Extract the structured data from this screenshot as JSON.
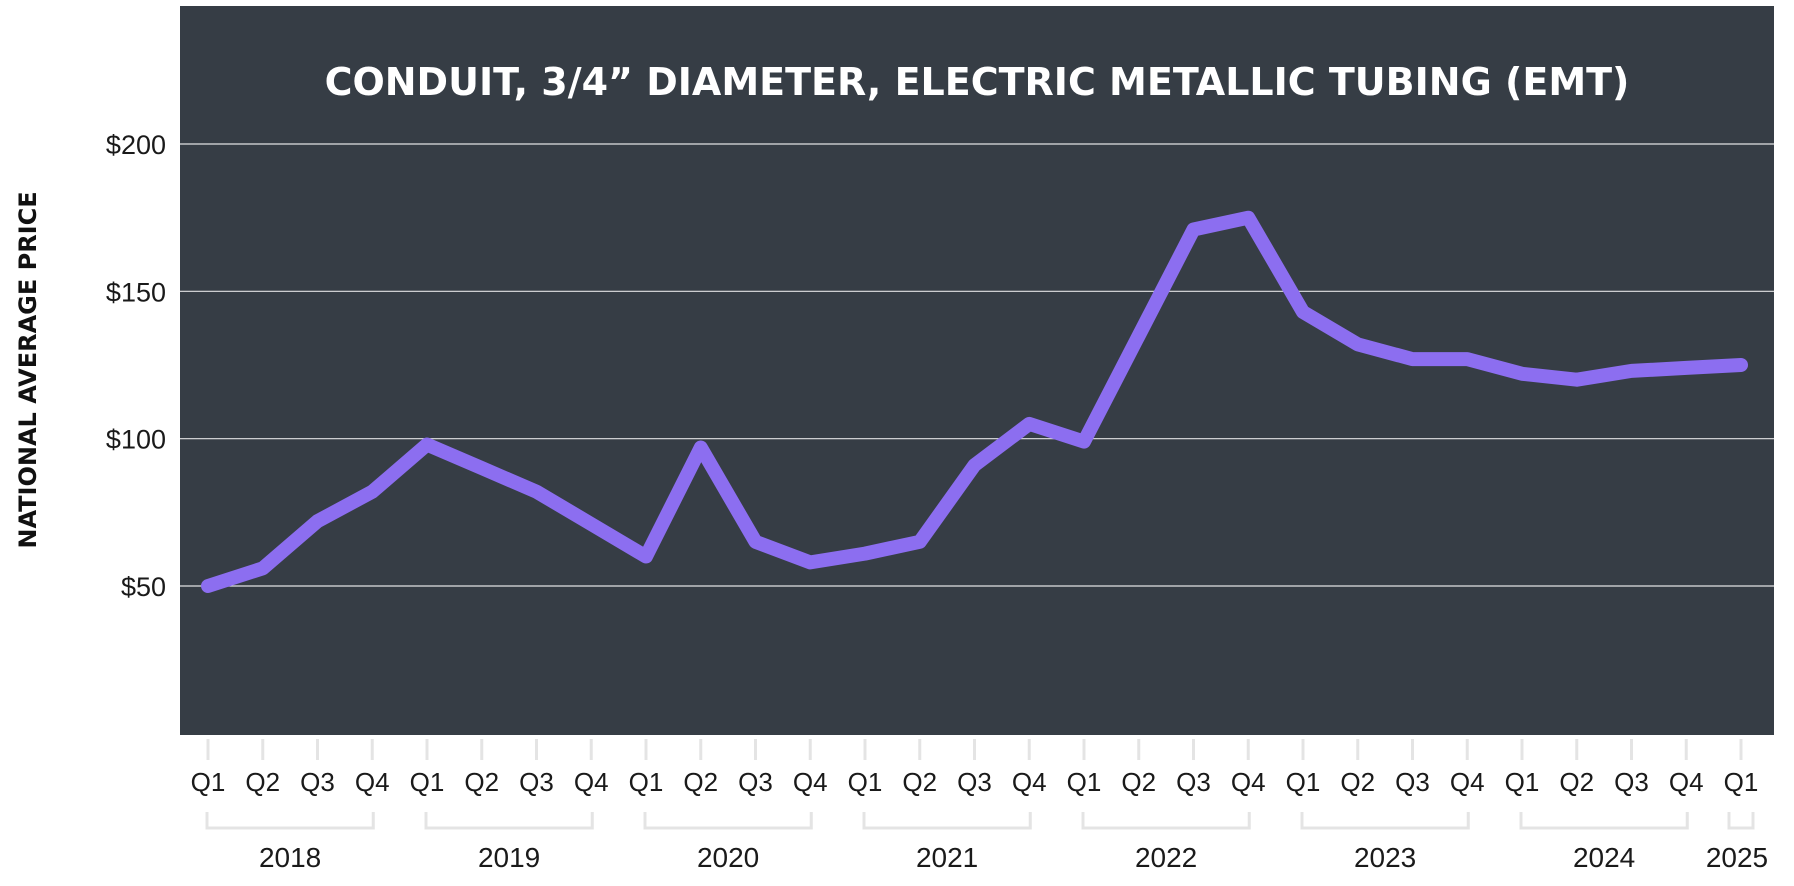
{
  "colors": {
    "plot_background": "#363d45",
    "line": "#8c6ef0",
    "gridline": "#ffffff",
    "tick_marks": "#e4e4e4",
    "text": "#1a1a1a"
  },
  "chart_data": {
    "type": "line",
    "title": "CONDUIT, 3/4” DIAMETER, ELECTRIC METALLIC TUBING (EMT)",
    "ylabel": "NATIONAL AVERAGE PRICE",
    "xlabel": "",
    "ylim": [
      0,
      240
    ],
    "yticks": [
      50,
      100,
      150,
      200
    ],
    "ytick_labels": [
      "$50",
      "$100",
      "$150",
      "$200"
    ],
    "grid": true,
    "categories": [
      "Q1",
      "Q2",
      "Q3",
      "Q4",
      "Q1",
      "Q2",
      "Q3",
      "Q4",
      "Q1",
      "Q2",
      "Q3",
      "Q4",
      "Q1",
      "Q2",
      "Q3",
      "Q4",
      "Q1",
      "Q2",
      "Q3",
      "Q4",
      "Q1",
      "Q2",
      "Q3",
      "Q4",
      "Q1",
      "Q2",
      "Q3",
      "Q4",
      "Q1"
    ],
    "years": [
      {
        "label": "2018",
        "quarters": 4
      },
      {
        "label": "2019",
        "quarters": 4
      },
      {
        "label": "2020",
        "quarters": 4
      },
      {
        "label": "2021",
        "quarters": 4
      },
      {
        "label": "2022",
        "quarters": 4
      },
      {
        "label": "2023",
        "quarters": 4
      },
      {
        "label": "2024",
        "quarters": 4
      },
      {
        "label": "2025",
        "quarters": 1
      }
    ],
    "series": [
      {
        "values": [
          50,
          56,
          72,
          82,
          98,
          90,
          82,
          71,
          60,
          97,
          65,
          58,
          61,
          65,
          91,
          105,
          99,
          135,
          171,
          175,
          143,
          132,
          127,
          127,
          122,
          120,
          123,
          124,
          125
        ]
      }
    ]
  }
}
